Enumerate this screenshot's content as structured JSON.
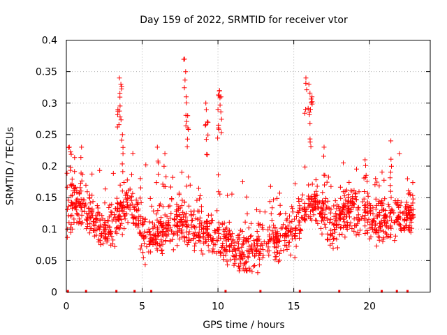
{
  "chart_data": {
    "type": "scatter",
    "title": "Day 159 of 2022, SRMTID for receiver vtor",
    "xlabel": "GPS time / hours",
    "ylabel": "SRMTID / TECUs",
    "xlim": [
      0,
      24
    ],
    "ylim": [
      0,
      0.4
    ],
    "x_ticks": [
      0,
      5,
      10,
      15,
      20
    ],
    "y_ticks": [
      0,
      0.05,
      0.1,
      0.15,
      0.2,
      0.25,
      0.3,
      0.35,
      0.4
    ],
    "x_tick_labels": [
      "0",
      "5",
      "10",
      "15",
      "20"
    ],
    "y_tick_labels": [
      "0",
      "0.05",
      "0.1",
      "0.15",
      "0.2",
      "0.25",
      "0.3",
      "0.35",
      "0.4"
    ],
    "grid": true,
    "marker": "plus",
    "color": "#ff0000",
    "baseline_marks_x": [
      0.1,
      1.3,
      3.3,
      4.5,
      5.6,
      10.5,
      12.8,
      15.4,
      18.0,
      20.8,
      21.8,
      22.5
    ],
    "series": [
      {
        "name": "SRMTID",
        "trend_x": [
          0,
          0.5,
          1,
          1.5,
          2,
          2.5,
          3,
          3.5,
          4,
          4.5,
          5,
          5.5,
          6,
          6.5,
          7,
          7.5,
          8,
          8.5,
          9,
          9.5,
          10,
          10.5,
          11,
          11.5,
          12,
          12.5,
          13,
          13.5,
          14,
          14.5,
          15,
          15.5,
          16,
          16.5,
          17,
          17.5,
          18,
          18.5,
          19,
          19.5,
          20,
          20.5,
          21,
          21.5,
          22,
          22.5,
          23
        ],
        "trend_y": [
          0.12,
          0.14,
          0.14,
          0.13,
          0.11,
          0.1,
          0.1,
          0.13,
          0.14,
          0.12,
          0.1,
          0.09,
          0.09,
          0.1,
          0.11,
          0.11,
          0.1,
          0.1,
          0.1,
          0.09,
          0.09,
          0.08,
          0.07,
          0.06,
          0.07,
          0.07,
          0.07,
          0.08,
          0.08,
          0.09,
          0.1,
          0.12,
          0.14,
          0.14,
          0.12,
          0.1,
          0.12,
          0.13,
          0.13,
          0.12,
          0.12,
          0.11,
          0.11,
          0.12,
          0.12,
          0.12,
          0.12
        ],
        "spikes": [
          {
            "x": 0.2,
            "y": 0.23
          },
          {
            "x": 1.0,
            "y": 0.23
          },
          {
            "x": 3.5,
            "y": 0.34
          },
          {
            "x": 3.6,
            "y": 0.33
          },
          {
            "x": 3.4,
            "y": 0.29
          },
          {
            "x": 3.7,
            "y": 0.25
          },
          {
            "x": 6.0,
            "y": 0.23
          },
          {
            "x": 6.5,
            "y": 0.22
          },
          {
            "x": 7.8,
            "y": 0.37
          },
          {
            "x": 7.9,
            "y": 0.31
          },
          {
            "x": 8.0,
            "y": 0.28
          },
          {
            "x": 9.2,
            "y": 0.3
          },
          {
            "x": 9.3,
            "y": 0.27
          },
          {
            "x": 10.1,
            "y": 0.32
          },
          {
            "x": 10.2,
            "y": 0.31
          },
          {
            "x": 10.0,
            "y": 0.29
          },
          {
            "x": 15.8,
            "y": 0.34
          },
          {
            "x": 16.0,
            "y": 0.33
          },
          {
            "x": 16.2,
            "y": 0.31
          },
          {
            "x": 16.1,
            "y": 0.29
          },
          {
            "x": 17.0,
            "y": 0.23
          },
          {
            "x": 19.7,
            "y": 0.21
          },
          {
            "x": 21.4,
            "y": 0.24
          },
          {
            "x": 22.5,
            "y": 0.18
          }
        ]
      }
    ]
  }
}
